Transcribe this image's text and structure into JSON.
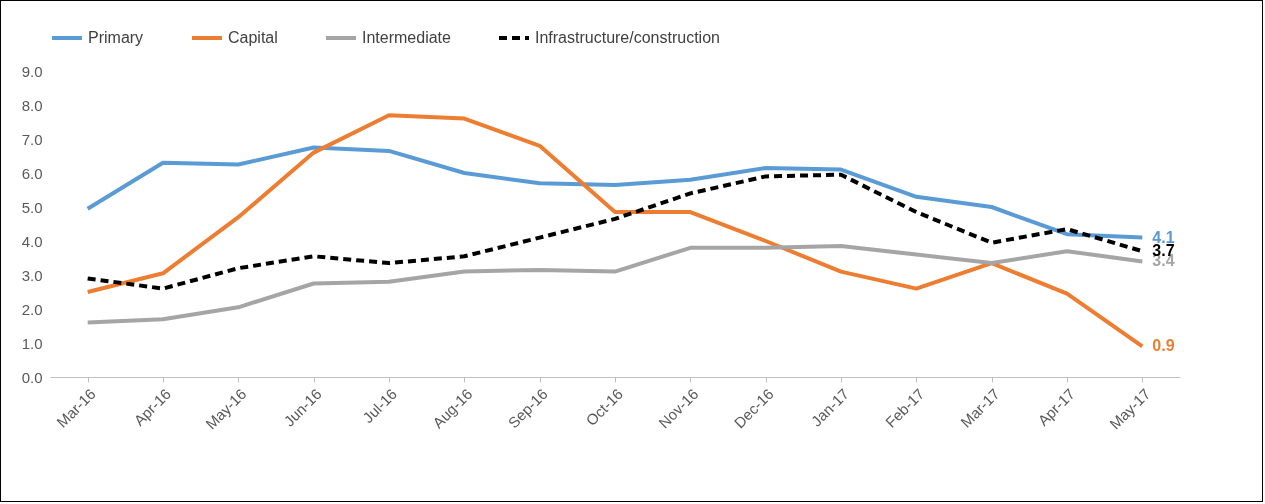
{
  "chart_data": {
    "type": "line",
    "categories": [
      "Mar-16",
      "Apr-16",
      "May-16",
      "Jun-16",
      "Jul-16",
      "Aug-16",
      "Sep-16",
      "Oct-16",
      "Nov-16",
      "Dec-16",
      "Jan-17",
      "Feb-17",
      "Mar-17",
      "Apr-17",
      "May-17"
    ],
    "series": [
      {
        "name": "Primary",
        "color": "#5b9bd5",
        "values": [
          4.95,
          6.3,
          6.25,
          6.75,
          6.65,
          6.0,
          5.7,
          5.65,
          5.8,
          6.15,
          6.1,
          5.3,
          5.0,
          4.2,
          4.1
        ],
        "value_labels": [
          null,
          null,
          null,
          null,
          null,
          null,
          null,
          null,
          null,
          null,
          null,
          null,
          null,
          null,
          "4.1"
        ]
      },
      {
        "name": "Capital",
        "color": "#ed7d31",
        "values": [
          2.5,
          3.05,
          4.7,
          6.6,
          7.7,
          7.6,
          6.8,
          4.85,
          4.85,
          4.0,
          3.1,
          2.6,
          3.35,
          2.45,
          0.9
        ],
        "value_labels": [
          null,
          null,
          null,
          null,
          null,
          null,
          null,
          null,
          null,
          null,
          null,
          null,
          null,
          null,
          "0.9"
        ]
      },
      {
        "name": "Intermediate",
        "color": "#a5a5a5",
        "values": [
          1.6,
          1.7,
          2.05,
          2.75,
          2.8,
          3.1,
          3.15,
          3.1,
          3.8,
          3.8,
          3.85,
          3.6,
          3.35,
          3.7,
          3.4
        ],
        "value_labels": [
          null,
          null,
          null,
          null,
          null,
          null,
          null,
          null,
          null,
          null,
          null,
          null,
          null,
          null,
          "3.4"
        ]
      },
      {
        "name": "Infrastructure/construction",
        "color": "#000000",
        "line_style": "dashed",
        "values": [
          2.9,
          2.6,
          3.2,
          3.55,
          3.35,
          3.55,
          4.1,
          4.65,
          5.4,
          5.9,
          5.95,
          4.85,
          3.95,
          4.35,
          3.7
        ],
        "value_labels": [
          null,
          null,
          null,
          null,
          null,
          null,
          null,
          null,
          null,
          null,
          null,
          null,
          null,
          null,
          "3.7"
        ]
      }
    ],
    "ylim": [
      0,
      9
    ],
    "yticks": [
      {
        "value": 0,
        "label": "0.0"
      },
      {
        "value": 1,
        "label": "1.0"
      },
      {
        "value": 2,
        "label": "2.0"
      },
      {
        "value": 3,
        "label": "3.0"
      },
      {
        "value": 4,
        "label": "4.0"
      },
      {
        "value": 5,
        "label": "5.0"
      },
      {
        "value": 6,
        "label": "6.0"
      },
      {
        "value": 7,
        "label": "7.0"
      },
      {
        "value": 8,
        "label": "8.0"
      },
      {
        "value": 9,
        "label": "9.0"
      }
    ],
    "grid": false,
    "legend": "top",
    "marker": "none",
    "line_style": "solid"
  }
}
